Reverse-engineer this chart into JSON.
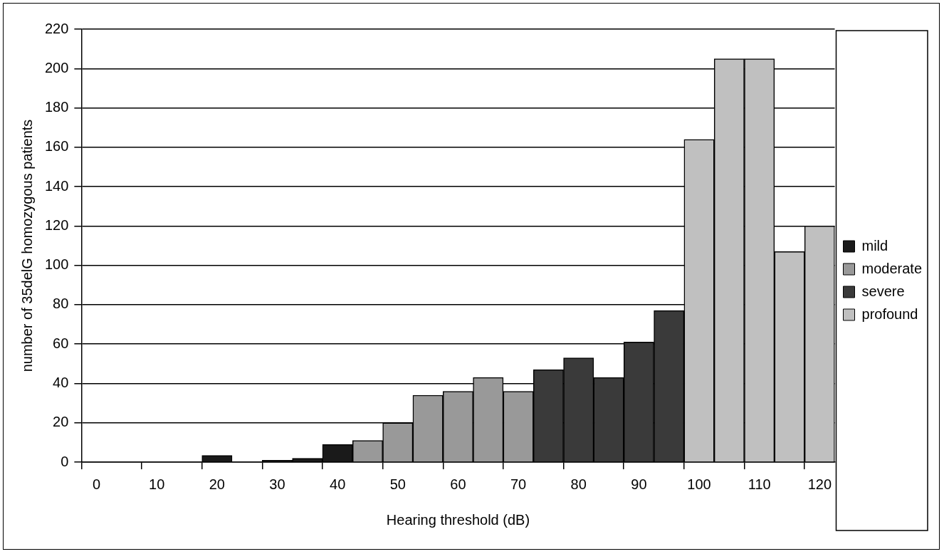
{
  "chart_data": {
    "type": "bar",
    "xlabel": "Hearing threshold (dB)",
    "ylabel": "number of 35delG homozygous patients",
    "categories": [
      "0",
      null,
      "10",
      null,
      "20",
      null,
      "30",
      null,
      "40",
      null,
      "50",
      null,
      "60",
      null,
      "70",
      null,
      "80",
      null,
      "90",
      null,
      "100",
      null,
      "110",
      null,
      "120"
    ],
    "series": [
      {
        "name": "mild",
        "color": "#1a1a1a",
        "values": [
          null,
          null,
          null,
          null,
          3.4,
          null,
          1,
          2,
          9,
          null,
          null,
          null,
          null,
          null,
          null,
          null,
          null,
          null,
          null,
          null,
          null,
          null,
          null,
          null,
          null
        ]
      },
      {
        "name": "moderate",
        "color": "#999999",
        "values": [
          null,
          null,
          null,
          null,
          null,
          null,
          null,
          null,
          null,
          11,
          20,
          34,
          36,
          43,
          36,
          null,
          null,
          null,
          null,
          null,
          null,
          null,
          null,
          null,
          null
        ]
      },
      {
        "name": "severe",
        "color": "#3a3a3a",
        "values": [
          null,
          null,
          null,
          null,
          null,
          null,
          null,
          null,
          null,
          null,
          null,
          null,
          null,
          null,
          null,
          47,
          53,
          43,
          61,
          77,
          null,
          null,
          null,
          null,
          null
        ]
      },
      {
        "name": "profound",
        "color": "#c0c0c0",
        "values": [
          null,
          null,
          null,
          null,
          null,
          null,
          null,
          null,
          null,
          null,
          null,
          null,
          null,
          null,
          null,
          null,
          null,
          null,
          null,
          null,
          164,
          205,
          205,
          107,
          120
        ]
      }
    ],
    "ylim": [
      0,
      220
    ],
    "yticks": [
      0,
      20,
      40,
      60,
      80,
      100,
      120,
      140,
      160,
      180,
      200,
      220
    ],
    "grid": "y",
    "legend": "right"
  }
}
